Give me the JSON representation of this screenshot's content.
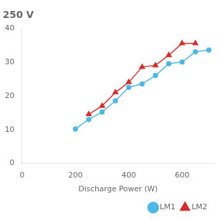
{
  "chart_data": {
    "type": "line",
    "title": "250 V",
    "xlabel": "Discharge Power (W)",
    "xlim": [
      0,
      720
    ],
    "ylim": [
      0,
      40
    ],
    "xticks": [
      0,
      200,
      400,
      600
    ],
    "yticks": [
      0,
      10,
      20,
      30,
      40
    ],
    "grid": false,
    "legend": "lower right",
    "series": [
      {
        "name": "LM1",
        "color": "#4bb8e8",
        "marker": "circle",
        "x": [
          200,
          250,
          300,
          350,
          400,
          450,
          500,
          550,
          600,
          650,
          700
        ],
        "values": [
          10.2,
          13.0,
          15.2,
          18.5,
          22.5,
          23.5,
          26.0,
          29.5,
          30.0,
          33.0,
          33.5
        ]
      },
      {
        "name": "LM2",
        "color": "#d92b2b",
        "marker": "triangle",
        "x": [
          250,
          300,
          350,
          400,
          450,
          500,
          550,
          600,
          650
        ],
        "values": [
          14.5,
          17.0,
          21.0,
          24.0,
          28.5,
          29.0,
          32.0,
          35.5,
          35.5
        ]
      }
    ]
  }
}
